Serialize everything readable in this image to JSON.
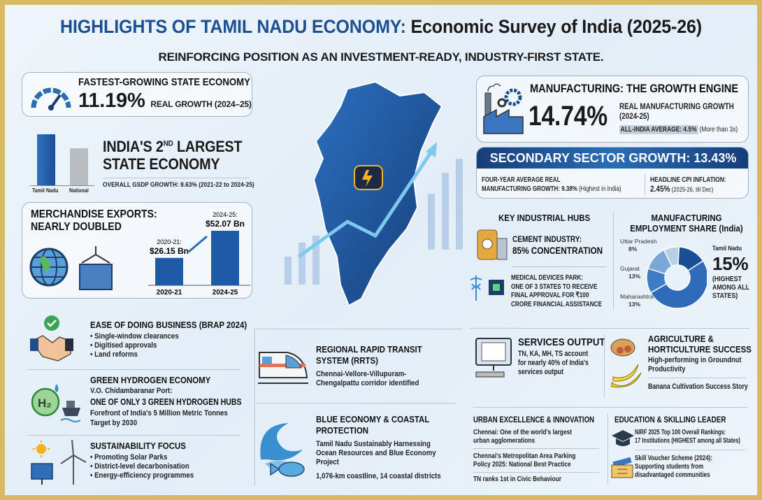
{
  "title": {
    "part1": "HIGHLIGHTS OF TAMIL NADU ECONOMY:",
    "part2": " Economic Survey of India (2025-26)"
  },
  "subtitle": "REINFORCING POSITION AS AN INVESTMENT-READY, INDUSTRY-FIRST STATE.",
  "fastest": {
    "heading": "FASTEST-GROWING STATE ECONOMY",
    "value": "11.19%",
    "label": "REAL GROWTH (2024–25)",
    "icon": "speedometer-icon"
  },
  "largest": {
    "line1": "INDIA'S 2",
    "sup": "ND",
    "line1b": " LARGEST",
    "line2": "STATE ECONOMY",
    "note": "OVERALL GSDP GROWTH: 8.63% (2021-22 to 2024-25)",
    "bar_labels": [
      "Tamil Nadu",
      "National"
    ]
  },
  "exports": {
    "heading1": "MERCHANDISE EXPORTS:",
    "heading2": "NEARLY DOUBLED",
    "label1_year": "2020-21:",
    "label1_val": "$26.15 Bn",
    "label2_year": "2024-25:",
    "label2_val": "$52.07 Bn"
  },
  "ease": {
    "heading": "EASE OF DOING BUSINESS (BRAP 2024)",
    "items": [
      "• Single-window clearances",
      "• Digitised approvals",
      "• Land reforms"
    ]
  },
  "hydrogen": {
    "heading": "GREEN HYDROGEN ECONOMY",
    "port": "V.O. Chidambaranar Port:",
    "hubs": "ONE OF ONLY 3 GREEN HYDROGEN HUBS",
    "line1": "Forefront of India's 5 Million Metric Tonnes",
    "line2": "Target by 2030",
    "badge": "H₂"
  },
  "sustain": {
    "heading": "SUSTAINABILITY FOCUS",
    "items": [
      "• Promoting Solar Parks",
      "• District-level decarbonisation",
      "• Energy-efficiency programmes"
    ]
  },
  "manufacturing": {
    "heading": "MANUFACTURING: THE GROWTH ENGINE",
    "value": "14.74%",
    "label1": "REAL MANUFACTURING GROWTH",
    "label2": "(2024-25)",
    "avg": "ALL-INDIA AVERAGE: 4.5%",
    "avg_note": " (More than 3x)"
  },
  "secondary": {
    "banner": "SECONDARY SECTOR GROWTH: 13.43%",
    "left1": "FOUR-YEAR AVERAGE REAL",
    "left2": "MANUFACTURING GROWTH: 9.38%",
    "left2_note": " (Highest in India)",
    "right1": "HEADLINE CPI INFLATION:",
    "right2": "2.45%",
    "right2_note": " (2025-26, till Dec)"
  },
  "hubs": {
    "heading": "KEY INDUSTRIAL HUBS",
    "cement1": "CEMENT INDUSTRY:",
    "cement2": "85% CONCENTRATION",
    "med": [
      "MEDICAL DEVICES PARK:",
      "ONE OF 3 STATES TO RECEIVE",
      "FINAL APPROVAL FOR ₹100",
      "CRORE FINANCIAL ASSISTANCE"
    ]
  },
  "employment": {
    "heading1": "MANUFACTURING",
    "heading2": "EMPLOYMENT SHARE (India)",
    "tn_label": "Tamil Nadu",
    "tn_value": "15%",
    "tn_note": [
      "(HIGHEST",
      "AMONG ALL",
      "STATES)"
    ]
  },
  "rrts": {
    "heading1": "REGIONAL RAPID TRANSIT",
    "heading2": "SYSTEM (RRTS)",
    "line1": "Chennai-Vellore-Villupuram-",
    "line2": "Chengalpattu corridor identified"
  },
  "blue": {
    "heading1": "BLUE ECONOMY & COASTAL",
    "heading2": "PROTECTION",
    "lines": [
      "Tamil Nadu Sustainably Harnessing",
      "Ocean Resources and Blue Economy",
      "Project"
    ],
    "coast": "1,076-km coastline, 14 coastal districts"
  },
  "services": {
    "heading": "SERVICES OUTPUT",
    "lines": [
      "TN, KA, MH, TS account",
      "for nearly 40% of India's",
      "services output"
    ]
  },
  "agri": {
    "heading1": "AGRICULTURE &",
    "heading2": "HORTICULTURE SUCCESS",
    "lines": [
      "High-performing in Groundnut",
      "Productivity"
    ],
    "banana": "Banana Cultivation Success Story"
  },
  "urban": {
    "heading": "URBAN EXCELLENCE & INNOVATION",
    "items": [
      [
        "Chennai: One of the world's largest",
        "urban agglomerations"
      ],
      [
        "Chennai's Metropolitan Area Parking",
        "Policy 2025: National Best Practice"
      ],
      [
        "TN ranks 1st in Civic Behaviour"
      ]
    ]
  },
  "education": {
    "heading": "EDUCATION & SKILLING LEADER",
    "nirf": [
      "NIRF 2025 Top 100 Overall Rankings:",
      "17 Institutions (HIGHEST among all States)"
    ],
    "skill": [
      "Skill Voucher Scheme (2024):",
      "Supporting students from",
      "disadvantaged communities"
    ]
  },
  "colors": {
    "primary": "#1f5aa6",
    "dark": "#163e78",
    "frame": "#d9b866"
  },
  "chart_data": [
    {
      "type": "bar",
      "categories": [
        "2020-21",
        "2024-25"
      ],
      "values": [
        26.15,
        52.07
      ],
      "unit": "$ Bn"
    },
    {
      "type": "pie",
      "series": [
        {
          "name": "Tamil Nadu",
          "value": 15
        },
        {
          "name": "Maharashtra",
          "value": 13
        },
        {
          "name": "Gujarat",
          "value": 13
        },
        {
          "name": "Uttar Pradesh",
          "value": 8
        }
      ],
      "labels": [
        "Tamil Nadu",
        "Maharashtra 13%",
        "Gujarat 13%",
        "Uttar Pradesh 8%"
      ]
    }
  ]
}
